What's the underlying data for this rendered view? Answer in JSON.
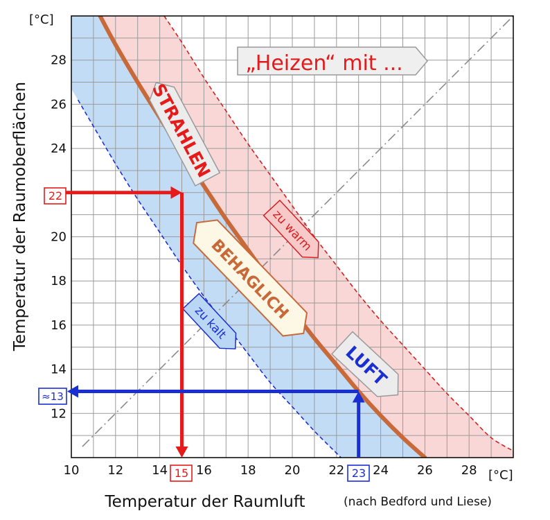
{
  "chart_data": {
    "type": "line",
    "title": "„Heizen“ mit ...",
    "xlabel": "Temperatur der Raumluft",
    "xlabel_note": "(nach Bedford und Liese)",
    "ylabel": "Temperatur der Raumoberflächen",
    "x_unit": "[°C]",
    "y_unit": "[°C]",
    "xlim": [
      10,
      30
    ],
    "ylim": [
      10,
      30
    ],
    "x_ticks": [
      "10",
      "12",
      "14",
      "16",
      "18",
      "20",
      "22",
      "24",
      "26",
      "28"
    ],
    "y_ticks": [
      "12",
      "14",
      "16",
      "18",
      "20",
      "22",
      "24",
      "26",
      "28"
    ],
    "grid": true,
    "series": [
      {
        "name": "behaglich",
        "style": "solid",
        "color": "#c8693a",
        "x": [
          11.3,
          12,
          13,
          14,
          15,
          16,
          17,
          18,
          19,
          20,
          21,
          22,
          23,
          24,
          25,
          26
        ],
        "y": [
          30,
          28.7,
          27.0,
          25.4,
          23.8,
          22.3,
          20.8,
          19.4,
          18.0,
          16.7,
          15.4,
          14.2,
          13.0,
          11.9,
          10.9,
          10
        ]
      },
      {
        "name": "zu kalt",
        "style": "dashed",
        "color": "#1a2fd1",
        "x": [
          10.3,
          11,
          12,
          13,
          14,
          15,
          16,
          17,
          18,
          19,
          20,
          21,
          22,
          22.2
        ],
        "y": [
          26.2,
          25.0,
          23.3,
          21.7,
          20.2,
          18.7,
          17.3,
          16.0,
          14.7,
          13.4,
          12.3,
          11.2,
          10.2,
          10
        ]
      },
      {
        "name": "zu warm",
        "style": "dashed",
        "color": "#d52020",
        "x": [
          14.2,
          15,
          16,
          17,
          18,
          19,
          20,
          21,
          22,
          23,
          24,
          25,
          26,
          27,
          28,
          29,
          30
        ],
        "y": [
          30,
          28.8,
          27.2,
          25.7,
          24.2,
          22.8,
          21.4,
          20.0,
          18.7,
          17.4,
          16.2,
          15.1,
          14.0,
          12.9,
          11.9,
          10.9,
          10.3
        ]
      },
      {
        "name": "Gleichheitslinie",
        "style": "dashdot",
        "color": "#888888",
        "x": [
          10.5,
          30
        ],
        "y": [
          10.5,
          30
        ]
      }
    ],
    "examples": [
      {
        "label": "22",
        "result": "15",
        "color": "#e51a1a",
        "y": 22,
        "x": 15
      },
      {
        "label": "23",
        "result": "≈13",
        "color": "#1a2fd1",
        "x": 23,
        "y": 13
      }
    ],
    "annotations": {
      "strahlen": "STRAHLEN",
      "behaglich": "BEHAGLICH",
      "luft": "LUFT",
      "zu_warm": "zu warm",
      "zu_kalt": "zu kalt"
    }
  }
}
